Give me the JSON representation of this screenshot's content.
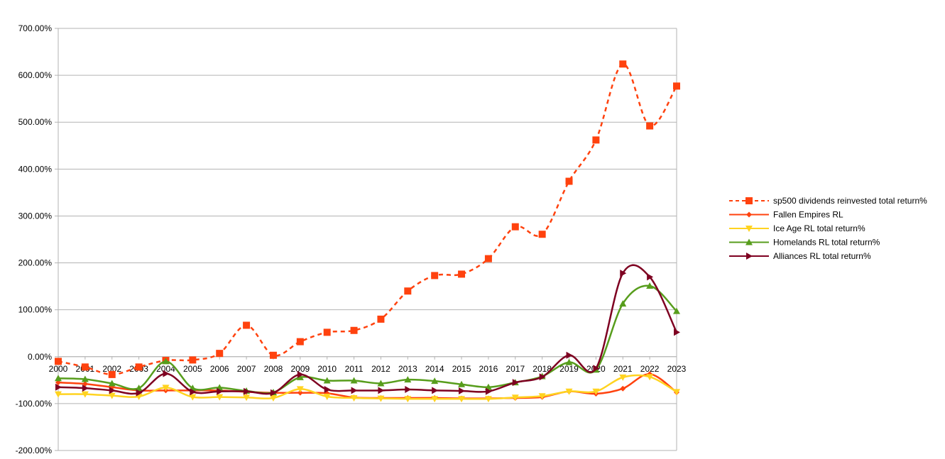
{
  "chart_data": {
    "type": "line",
    "title": "",
    "xlabel": "",
    "ylabel": "",
    "x": [
      "2000",
      "2001",
      "2002",
      "2003",
      "2004",
      "2005",
      "2006",
      "2007",
      "2008",
      "2009",
      "2010",
      "2011",
      "2012",
      "2013",
      "2014",
      "2015",
      "2016",
      "2017",
      "2018",
      "2019",
      "2020",
      "2021",
      "2022",
      "2023"
    ],
    "ylim": [
      -200,
      700
    ],
    "y_ticks": [
      "700.00%",
      "600.00%",
      "500.00%",
      "400.00%",
      "300.00%",
      "200.00%",
      "100.00%",
      "0.00%",
      "-100.00%",
      "-200.00%"
    ],
    "y_tick_values": [
      700,
      600,
      500,
      400,
      300,
      200,
      100,
      0,
      -100,
      -200
    ],
    "grid": "horizontal",
    "legend_position": "right",
    "series": [
      {
        "name": "sp500 dividends reinvested total return%",
        "color": "#ff420e",
        "dashed": true,
        "marker": "square",
        "values": [
          -10,
          -22,
          -38,
          -22,
          -8,
          -7,
          7,
          67,
          3,
          32,
          52,
          56,
          80,
          140,
          173,
          176,
          209,
          277,
          261,
          374,
          462,
          624,
          492,
          577
        ]
      },
      {
        "name": "Fallen Empires RL",
        "color": "#ff420e",
        "dashed": false,
        "marker": "diamond",
        "values": [
          -55,
          -58,
          -65,
          -72,
          -72,
          -72,
          -72,
          -75,
          -77,
          -77,
          -78,
          -87,
          -88,
          -88,
          -88,
          -89,
          -89,
          -88,
          -86,
          -74,
          -79,
          -68,
          -37,
          -76
        ]
      },
      {
        "name": "Ice Age RL total return%",
        "color": "#ffd320",
        "dashed": false,
        "marker": "triangle-down",
        "values": [
          -80,
          -80,
          -83,
          -85,
          -66,
          -86,
          -86,
          -87,
          -88,
          -69,
          -85,
          -88,
          -89,
          -90,
          -90,
          -90,
          -90,
          -87,
          -84,
          -74,
          -74,
          -44,
          -43,
          -75
        ]
      },
      {
        "name": "Homelands RL total return%",
        "color": "#579d1c",
        "dashed": false,
        "marker": "triangle-up",
        "values": [
          -46,
          -48,
          -57,
          -67,
          -10,
          -67,
          -66,
          -73,
          -76,
          -44,
          -51,
          -51,
          -57,
          -49,
          -52,
          -59,
          -65,
          -55,
          -42,
          -12,
          -28,
          113,
          151,
          97
        ]
      },
      {
        "name": "Alliances RL total return%",
        "color": "#7e0021",
        "dashed": false,
        "marker": "triangle-right",
        "values": [
          -65,
          -67,
          -72,
          -77,
          -36,
          -75,
          -74,
          -74,
          -77,
          -38,
          -70,
          -72,
          -72,
          -70,
          -72,
          -73,
          -74,
          -55,
          -43,
          3,
          -25,
          178,
          170,
          52
        ]
      }
    ]
  }
}
